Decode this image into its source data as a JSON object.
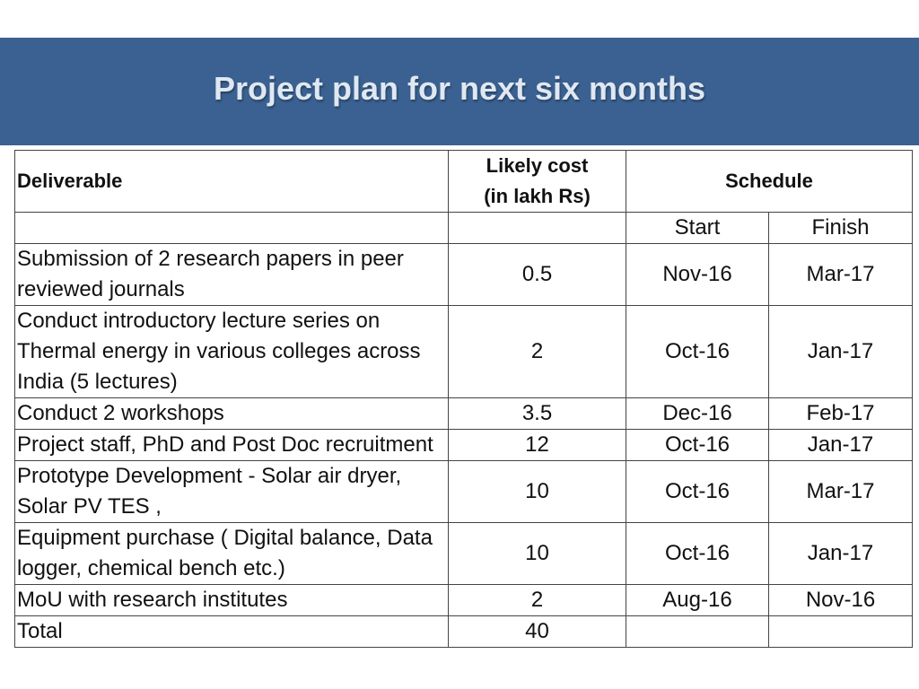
{
  "title": "Project plan for next six months",
  "table": {
    "headers": {
      "deliverable": "Deliverable",
      "cost_line1": "Likely cost",
      "cost_line2": "(in lakh Rs)",
      "schedule": "Schedule",
      "start": "Start",
      "finish": "Finish"
    },
    "rows": [
      {
        "deliverable": "Submission of 2 research papers in peer reviewed journals",
        "cost": "0.5",
        "start": "Nov-16",
        "finish": "Mar-17"
      },
      {
        "deliverable": "Conduct introductory lecture series on Thermal energy in various colleges across India (5 lectures)",
        "cost": "2",
        "start": "Oct-16",
        "finish": "Jan-17"
      },
      {
        "deliverable": "Conduct 2 workshops",
        "cost": "3.5",
        "start": "Dec-16",
        "finish": "Feb-17"
      },
      {
        "deliverable": "Project staff, PhD and Post Doc recruitment",
        "cost": "12",
        "start": "Oct-16",
        "finish": "Jan-17"
      },
      {
        "deliverable": "Prototype Development - Solar air dryer, Solar PV TES ,",
        "cost": "10",
        "start": "Oct-16",
        "finish": "Mar-17"
      },
      {
        "deliverable": "Equipment purchase ( Digital balance, Data logger, chemical bench etc.)",
        "cost": "10",
        "start": "Oct-16",
        "finish": "Jan-17"
      },
      {
        "deliverable": "MoU with research institutes",
        "cost": "2",
        "start": "Aug-16",
        "finish": "Nov-16"
      }
    ],
    "total": {
      "label": "Total",
      "cost": "40",
      "start": "",
      "finish": ""
    }
  }
}
